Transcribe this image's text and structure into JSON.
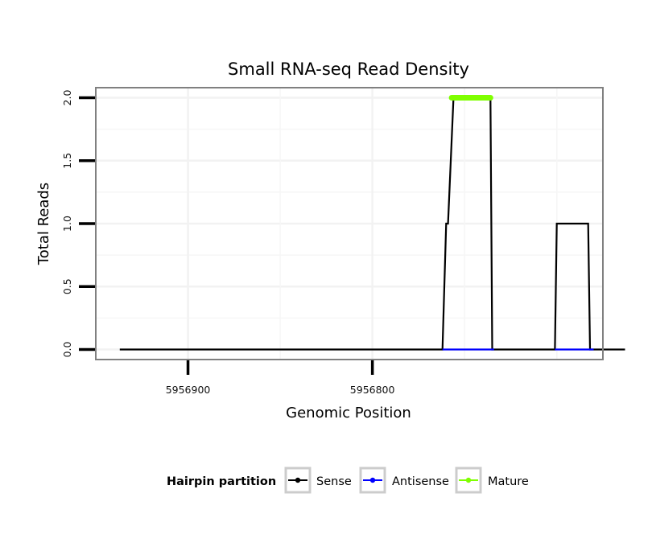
{
  "chart_data": {
    "type": "line",
    "title": "Small RNA-seq Read Density",
    "xlabel": "Genomic Position",
    "ylabel": "Total Reads",
    "x_reversed": true,
    "xlim": [
      5956950,
      5956675
    ],
    "ylim": [
      -0.08,
      2.08
    ],
    "x_ticks": [
      5956900,
      5956800
    ],
    "x_tick_labels": [
      "5956900",
      "5956800"
    ],
    "y_ticks": [
      0,
      0.5,
      1,
      1.5,
      2
    ],
    "y_tick_labels": [
      "0.0",
      "0.5",
      "1.0",
      "1.5",
      "2.0"
    ],
    "grid": true,
    "legend": {
      "title": "Hairpin partition",
      "position": "bottom",
      "entries": [
        {
          "name": "Sense",
          "color": "#000000"
        },
        {
          "name": "Antisense",
          "color": "#0000ff"
        },
        {
          "name": "Mature",
          "color": "#7fff00"
        }
      ]
    },
    "series": [
      {
        "name": "Sense",
        "color": "#000000",
        "x": [
          5956937,
          5956762,
          5956760,
          5956759,
          5956756,
          5956736,
          5956735,
          5956701,
          5956700,
          5956683,
          5956682,
          5956680,
          5956663
        ],
        "y": [
          0,
          0,
          1,
          1,
          2,
          2,
          0,
          0,
          1,
          1,
          0,
          0,
          0
        ]
      },
      {
        "name": "Antisense",
        "color": "#0000ff",
        "x": [
          5956762,
          5956734,
          null,
          5956701,
          5956680
        ],
        "y": [
          0,
          0,
          null,
          0,
          0
        ]
      },
      {
        "name": "Mature",
        "color": "#7fff00",
        "x": [
          5956757,
          5956736
        ],
        "y": [
          2,
          2
        ]
      }
    ]
  }
}
